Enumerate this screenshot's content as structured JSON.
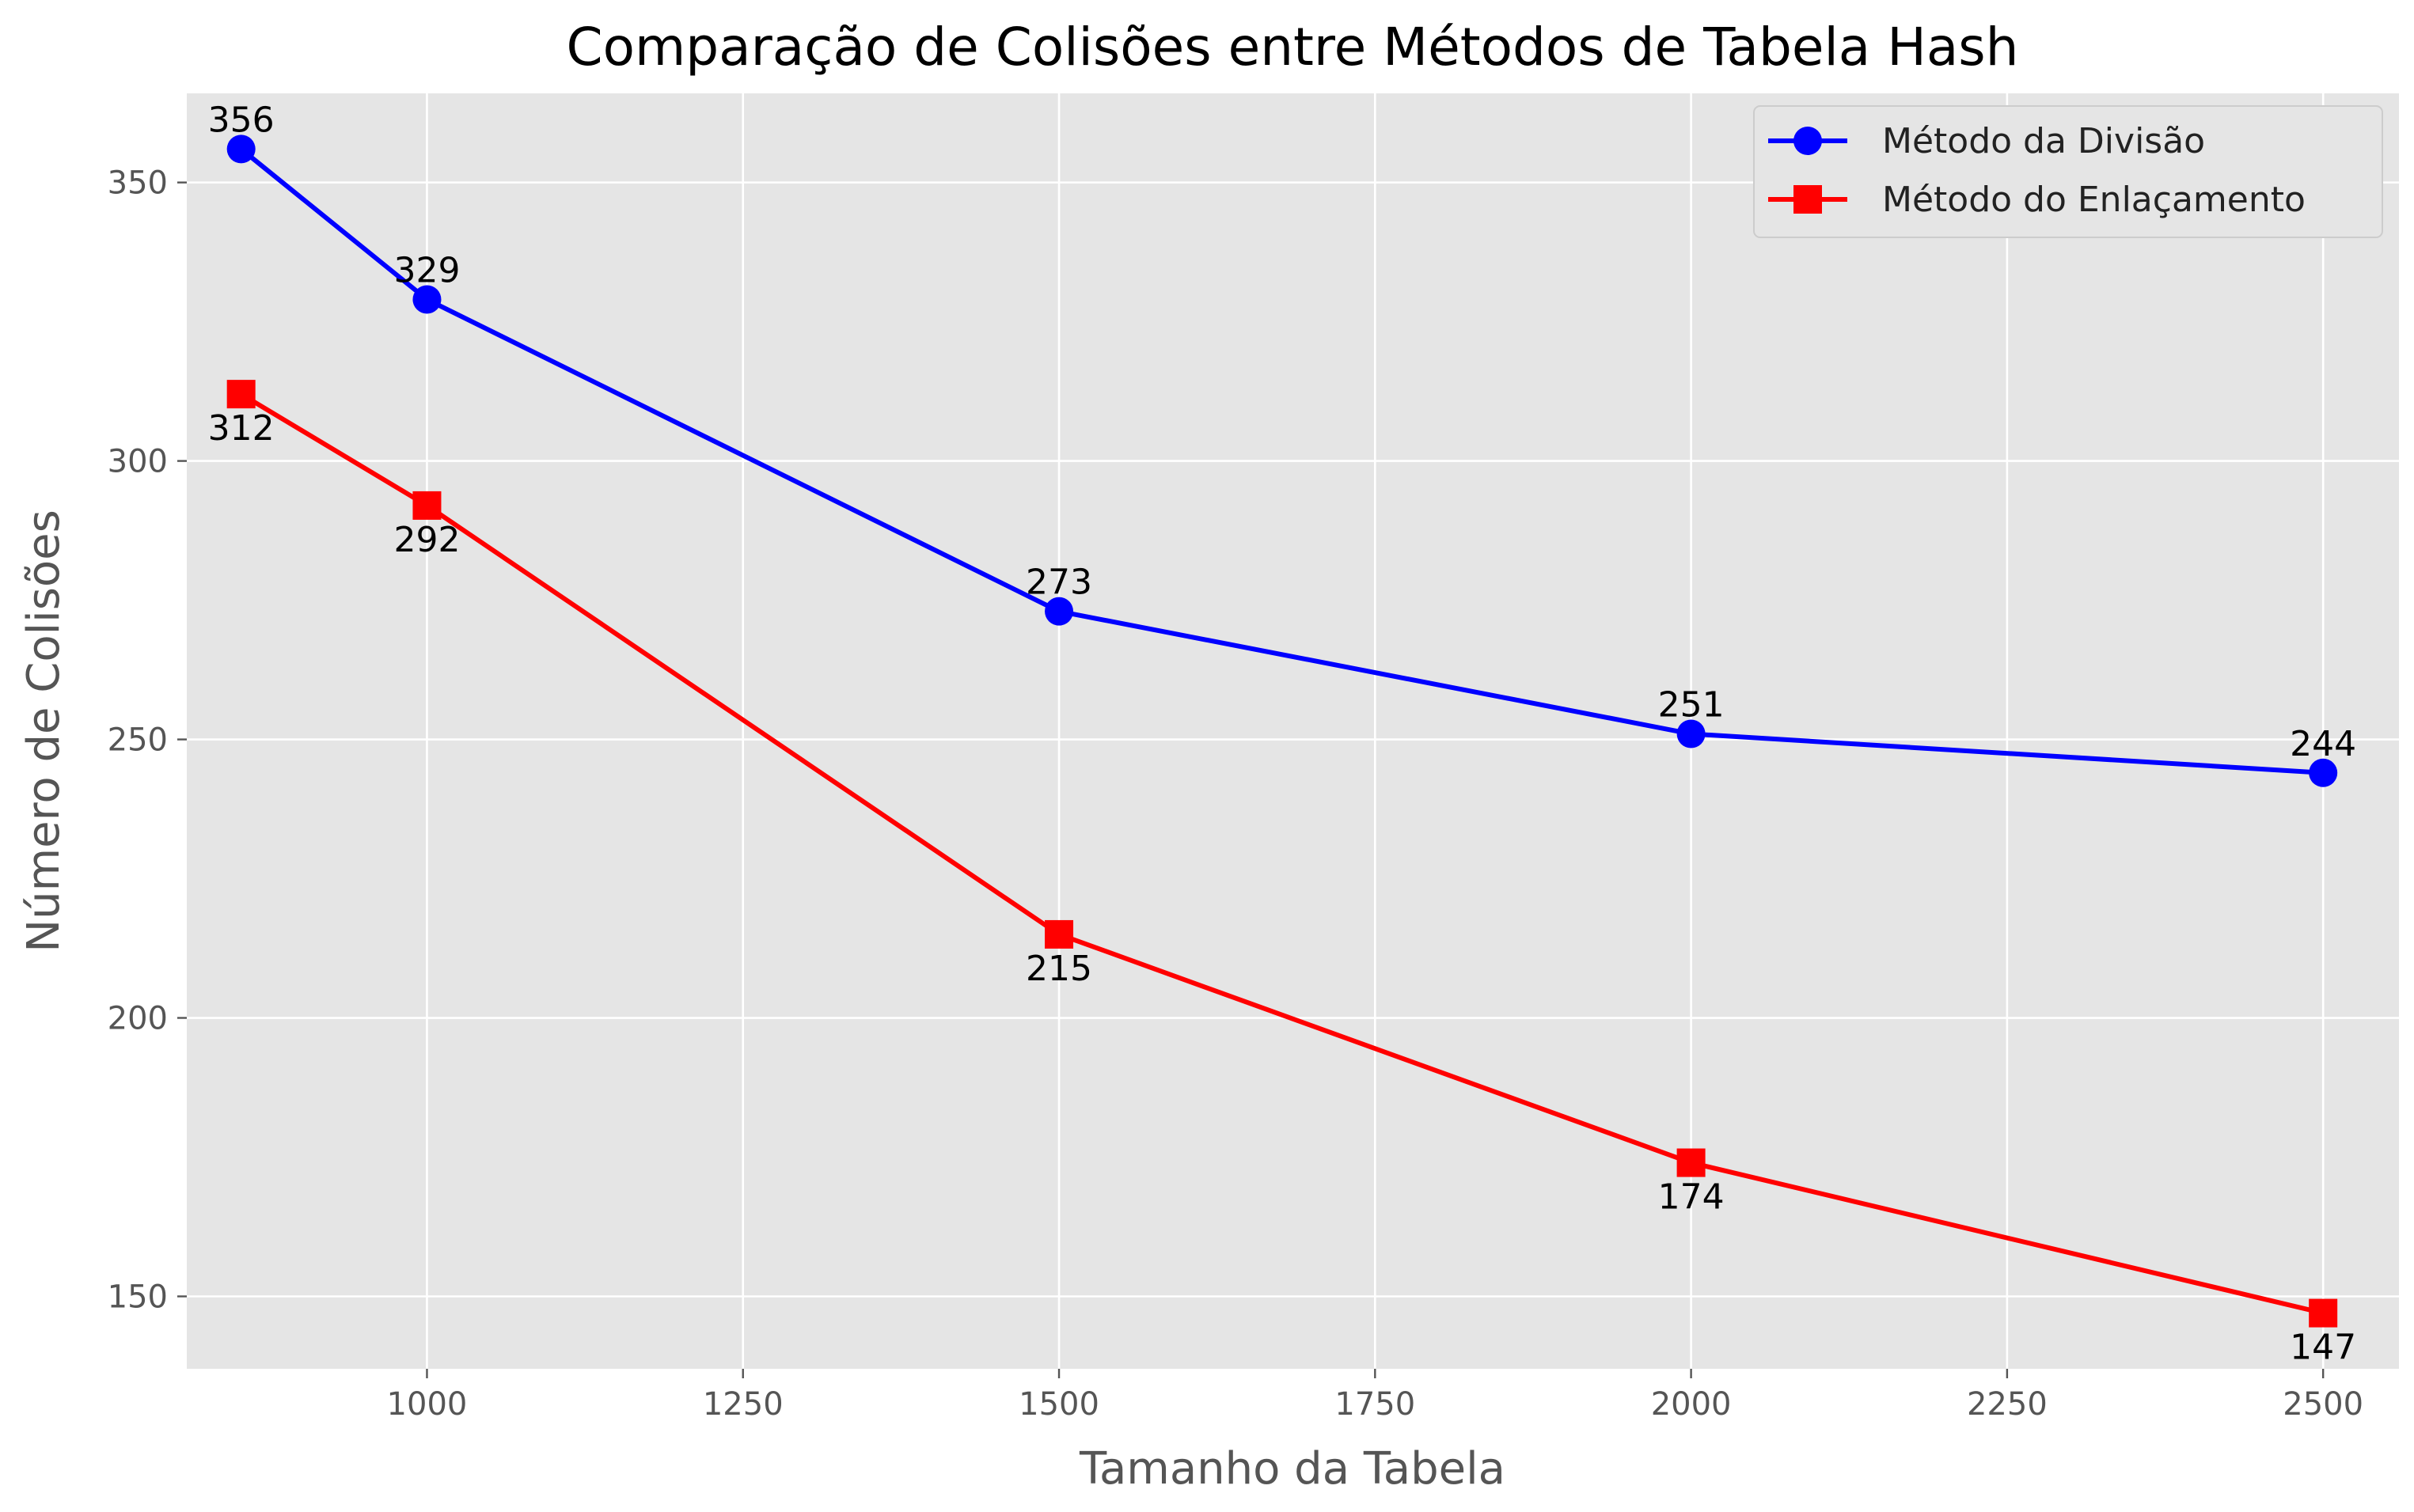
{
  "chart_data": {
    "type": "line",
    "title": "Comparação de Colisões entre Métodos de Tabela Hash",
    "xlabel": "Tamanho da Tabela",
    "ylabel": "Número de Colisões",
    "xlim": [
      810,
      2560
    ],
    "ylim": [
      137,
      366
    ],
    "x_ticks": [
      1000,
      1250,
      1500,
      1750,
      2000,
      2250,
      2500
    ],
    "y_ticks": [
      150,
      200,
      250,
      300,
      350
    ],
    "grid": true,
    "legend_position": "top-right",
    "x": [
      853,
      1000,
      1500,
      2000,
      2500
    ],
    "series": [
      {
        "name": "Método da Divisão",
        "values": [
          356,
          329,
          273,
          251,
          244
        ],
        "color": "#0000ff",
        "marker": "circle",
        "label_position": "above"
      },
      {
        "name": "Método do Enlaçamento",
        "values": [
          312,
          292,
          215,
          174,
          147
        ],
        "color": "#ff0000",
        "marker": "square",
        "label_position": "below"
      }
    ]
  }
}
